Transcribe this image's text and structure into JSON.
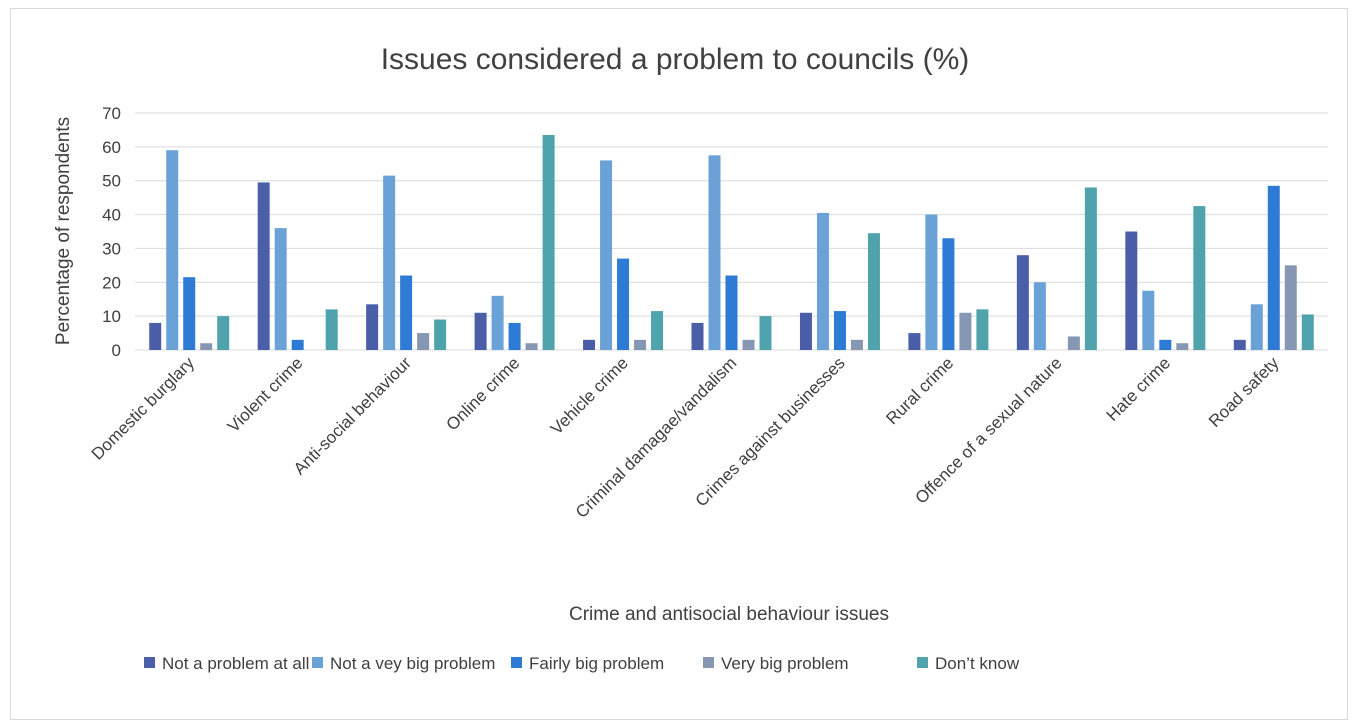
{
  "chart_data": {
    "type": "bar",
    "title": "Issues considered a problem to councils (%)",
    "xlabel": "Crime and antisocial behaviour issues",
    "ylabel": "Percentage of respondents",
    "ylim": [
      0,
      70
    ],
    "yticks": [
      "0",
      "10",
      "20",
      "30",
      "40",
      "50",
      "60",
      "70"
    ],
    "grid": true,
    "legend_position": "bottom",
    "categories": [
      "Domestic burglary",
      "Violent crime",
      "Anti-social behaviour",
      "Online crime",
      "Vehicle crime",
      "Criminal damagae/vandalism",
      "Crimes against businesses",
      "Rural crime",
      "Offence of a sexual nature",
      "Hate crime",
      "Road safety"
    ],
    "series": [
      {
        "name": "Not a problem at all",
        "color": "#4a5fa8",
        "values": [
          8,
          49.5,
          13.5,
          11,
          3,
          8,
          11,
          5,
          28,
          35,
          3
        ]
      },
      {
        "name": "Not a vey big problem",
        "color": "#6aa2d8",
        "values": [
          59,
          36,
          51.5,
          16,
          56,
          57.5,
          40.5,
          40,
          20,
          17.5,
          13.5
        ]
      },
      {
        "name": "Fairly big problem",
        "color": "#2e7bd6",
        "values": [
          21.5,
          3,
          22,
          8,
          27,
          22,
          11.5,
          33,
          0,
          3,
          48.5
        ]
      },
      {
        "name": "Very big problem",
        "color": "#8697b3",
        "values": [
          2,
          0,
          5,
          2,
          3,
          3,
          3,
          11,
          4,
          2,
          25
        ]
      },
      {
        "name": "Don’t know",
        "color": "#4ea3ad",
        "values": [
          10,
          12,
          9,
          63.5,
          11.5,
          10,
          34.5,
          12,
          48,
          42.5,
          10.5
        ]
      }
    ]
  }
}
